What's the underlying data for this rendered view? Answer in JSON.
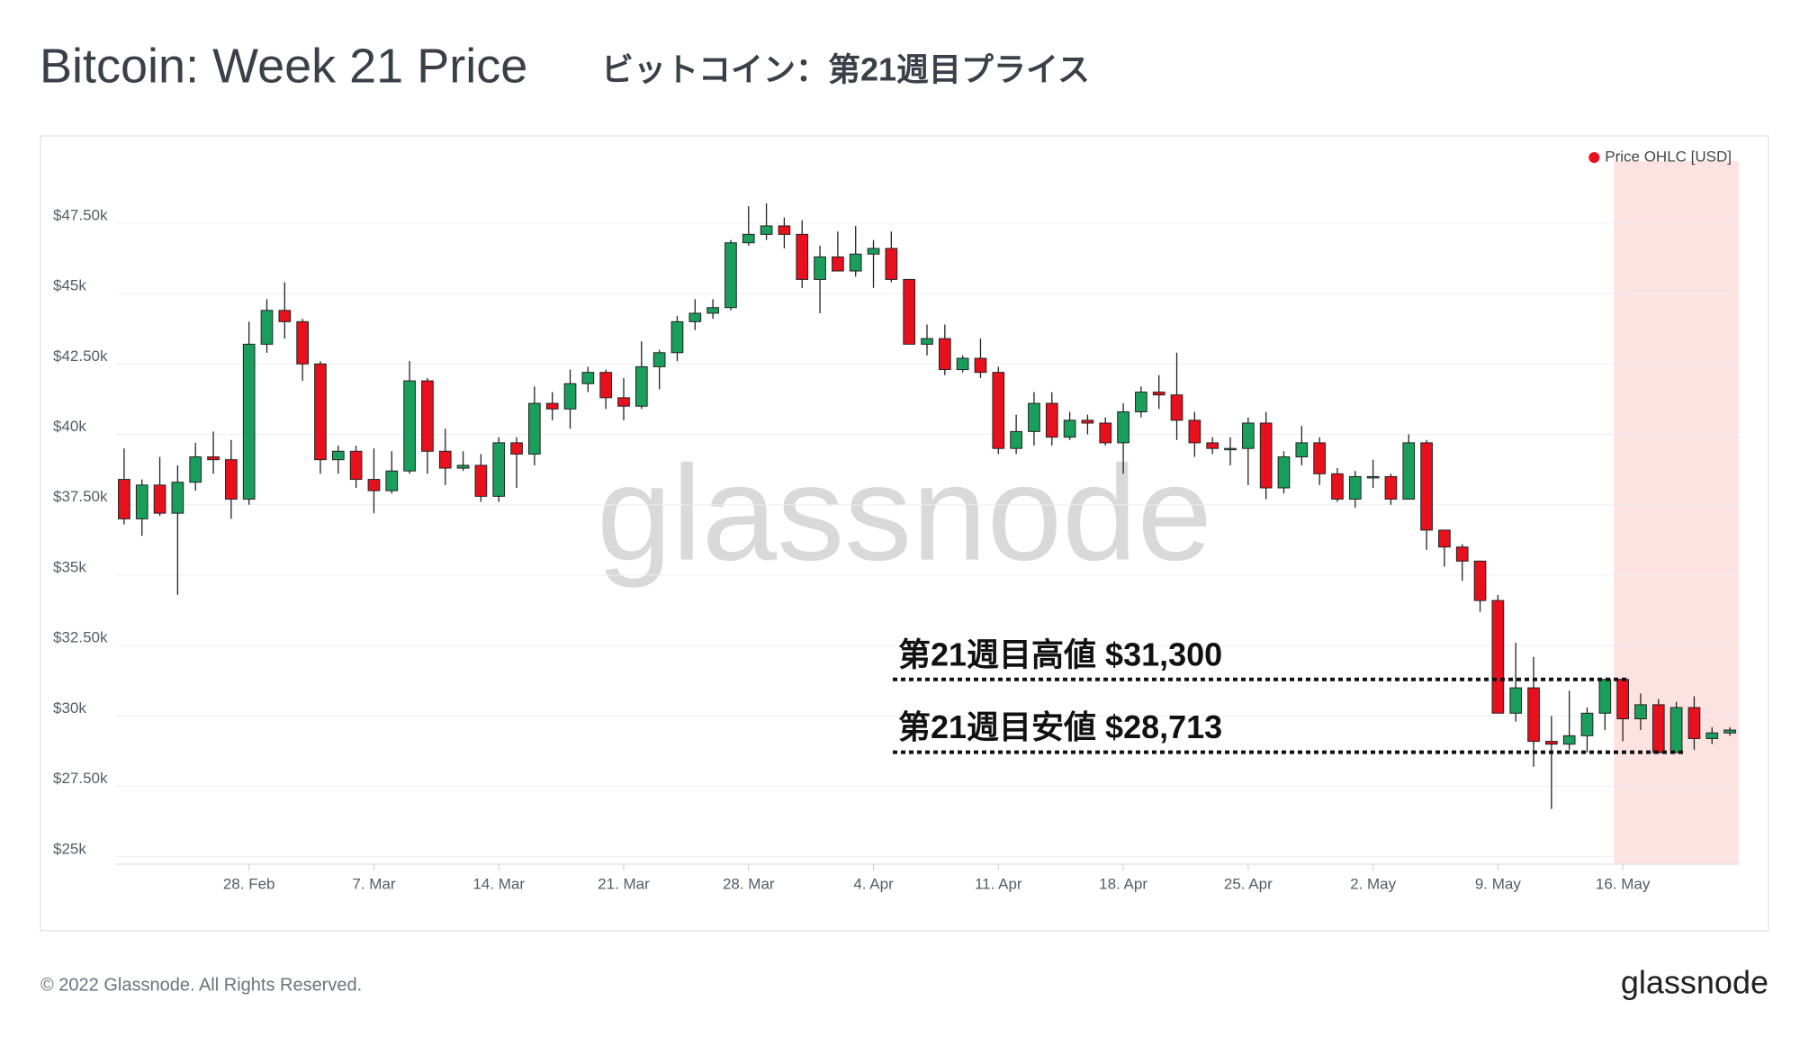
{
  "header": {
    "title": "Bitcoin: Week 21 Price",
    "subtitle": "ビットコイン：第21週目プライス"
  },
  "footer": {
    "copyright": "© 2022 Glassnode. All Rights Reserved.",
    "logo": "glassnode"
  },
  "watermark": "glassnode",
  "chart_data": {
    "type": "candlestick",
    "categories": [
      "21. Feb",
      "22. Feb",
      "23. Feb",
      "24. Feb",
      "25. Feb",
      "26. Feb",
      "27. Feb",
      "28. Feb",
      "1. Mar",
      "2. Mar",
      "3. Mar",
      "4. Mar",
      "5. Mar",
      "6. Mar",
      "7. Mar",
      "8. Mar",
      "9. Mar",
      "10. Mar",
      "11. Mar",
      "12. Mar",
      "13. Mar",
      "14. Mar",
      "15. Mar",
      "16. Mar",
      "17. Mar",
      "18. Mar",
      "19. Mar",
      "20. Mar",
      "21. Mar",
      "22. Mar",
      "23. Mar",
      "24. Mar",
      "25. Mar",
      "26. Mar",
      "27. Mar",
      "28. Mar",
      "29. Mar",
      "30. Mar",
      "31. Mar",
      "1. Apr",
      "2. Apr",
      "3. Apr",
      "4. Apr",
      "5. Apr",
      "6. Apr",
      "7. Apr",
      "8. Apr",
      "9. Apr",
      "10. Apr",
      "11. Apr",
      "12. Apr",
      "13. Apr",
      "14. Apr",
      "15. Apr",
      "16. Apr",
      "17. Apr",
      "18. Apr",
      "19. Apr",
      "20. Apr",
      "21. Apr",
      "22. Apr",
      "23. Apr",
      "24. Apr",
      "25. Apr",
      "26. Apr",
      "27. Apr",
      "28. Apr",
      "29. Apr",
      "30. Apr",
      "1. May",
      "2. May",
      "3. May",
      "4. May",
      "5. May",
      "6. May",
      "7. May",
      "8. May",
      "9. May",
      "10. May",
      "11. May",
      "12. May",
      "13. May",
      "14. May",
      "15. May",
      "16. May",
      "17. May",
      "18. May",
      "19. May",
      "20. May",
      "21. May",
      "22. May"
    ],
    "series": [
      {
        "name": "Price OHLC [USD]",
        "color": "#e8101c",
        "up_color": "#1a9e5c",
        "down_color": "#e8101c",
        "open": [
          38400,
          37000,
          38200,
          37200,
          38300,
          39200,
          39100,
          37700,
          43200,
          44400,
          44000,
          42500,
          39100,
          39400,
          38400,
          38000,
          38700,
          41900,
          39400,
          38800,
          38900,
          37800,
          39700,
          39300,
          41100,
          40900,
          41800,
          42200,
          41300,
          41000,
          42400,
          42900,
          44000,
          44300,
          44500,
          46800,
          47100,
          47400,
          47100,
          45500,
          46300,
          45800,
          46400,
          46600,
          45500,
          43200,
          43400,
          42300,
          42700,
          42200,
          39500,
          40100,
          41100,
          39900,
          40500,
          40400,
          39700,
          40800,
          41500,
          41400,
          40500,
          39700,
          39500,
          39500,
          40400,
          38100,
          39200,
          39700,
          38600,
          37700,
          38500,
          38500,
          37700,
          39700,
          36600,
          36000,
          35500,
          34100,
          30100,
          31000,
          29100,
          29000,
          29300,
          30100,
          31300,
          29900,
          30400,
          28700,
          30300,
          29200,
          29400
        ],
        "high": [
          39500,
          38400,
          39200,
          38900,
          39700,
          40100,
          39800,
          44000,
          44800,
          45400,
          44100,
          42600,
          39600,
          39600,
          39500,
          39400,
          42600,
          42000,
          40200,
          39400,
          39300,
          39900,
          39900,
          41700,
          41500,
          42300,
          42400,
          42300,
          42000,
          43300,
          43000,
          44200,
          44800,
          44800,
          46900,
          48100,
          48200,
          47700,
          47600,
          46700,
          47200,
          47400,
          46900,
          47200,
          45500,
          43900,
          43900,
          42800,
          43400,
          42400,
          40700,
          41500,
          41500,
          40800,
          40700,
          40600,
          41100,
          41700,
          42100,
          42900,
          40800,
          39900,
          39900,
          40600,
          40800,
          39400,
          40300,
          39900,
          38800,
          38700,
          39100,
          38600,
          40000,
          39800,
          36600,
          36100,
          35500,
          34300,
          32600,
          32100,
          30000,
          30900,
          30300,
          31300,
          31300,
          30800,
          30600,
          30500,
          30700,
          29600,
          29600
        ],
        "low": [
          36800,
          36400,
          37100,
          34300,
          38000,
          38600,
          37000,
          37500,
          42900,
          43400,
          41900,
          38600,
          38600,
          38100,
          37200,
          37900,
          38600,
          38600,
          38200,
          38700,
          37600,
          37600,
          38100,
          38900,
          40500,
          40200,
          41500,
          40900,
          40500,
          40900,
          41600,
          42600,
          43700,
          44100,
          44400,
          46700,
          46900,
          46600,
          45200,
          44300,
          45800,
          45600,
          45200,
          45400,
          43200,
          42800,
          42100,
          42200,
          42000,
          39300,
          39300,
          39600,
          39600,
          39800,
          40000,
          39600,
          38600,
          40600,
          40900,
          39800,
          39200,
          39300,
          38900,
          38200,
          37700,
          37900,
          38900,
          38200,
          37600,
          37400,
          38100,
          37500,
          37700,
          35900,
          35300,
          34800,
          33700,
          30100,
          29800,
          28200,
          26700,
          28800,
          28700,
          29500,
          29100,
          29500,
          28700,
          28700,
          28800,
          29000,
          29300
        ],
        "close": [
          37000,
          38200,
          37200,
          38300,
          39200,
          39100,
          37700,
          43200,
          44400,
          44000,
          42500,
          39100,
          39400,
          38400,
          38000,
          38700,
          41900,
          39400,
          38800,
          38900,
          37800,
          39700,
          39300,
          41100,
          40900,
          41800,
          42200,
          41300,
          41000,
          42400,
          42900,
          44000,
          44300,
          44500,
          46800,
          47100,
          47400,
          47100,
          45500,
          46300,
          45800,
          46400,
          46600,
          45500,
          43200,
          43400,
          42300,
          42700,
          42200,
          39500,
          40100,
          41100,
          39900,
          40500,
          40400,
          39700,
          40800,
          41500,
          41400,
          40500,
          39700,
          39500,
          39500,
          40400,
          38100,
          39200,
          39700,
          38600,
          37700,
          38500,
          38500,
          37700,
          39700,
          36600,
          36000,
          35500,
          34100,
          30100,
          31000,
          29100,
          29000,
          29300,
          30100,
          31300,
          29900,
          30400,
          28700,
          30300,
          29200,
          29400,
          29500
        ]
      }
    ],
    "ylim": [
      24740,
      49700
    ],
    "yticks": [
      {
        "value": 25000,
        "label": "$25k"
      },
      {
        "value": 27500,
        "label": "$27.50k"
      },
      {
        "value": 30000,
        "label": "$30k"
      },
      {
        "value": 32500,
        "label": "$32.50k"
      },
      {
        "value": 35000,
        "label": "$35k"
      },
      {
        "value": 37500,
        "label": "$37.50k"
      },
      {
        "value": 40000,
        "label": "$40k"
      },
      {
        "value": 42500,
        "label": "$42.50k"
      },
      {
        "value": 45000,
        "label": "$45k"
      },
      {
        "value": 47500,
        "label": "$47.50k"
      }
    ],
    "xticks": [
      "28. Feb",
      "7. Mar",
      "14. Mar",
      "21. Mar",
      "28. Mar",
      "4. Apr",
      "11. Apr",
      "18. Apr",
      "25. Apr",
      "2. May",
      "9. May",
      "16. May"
    ],
    "grid": true,
    "legend": "top-right",
    "highlight": {
      "from": "16. May",
      "to": "22. May",
      "color": "#fde2e2"
    },
    "annotations": [
      {
        "text": "第21週目高値 $31,300",
        "value": 31300
      },
      {
        "text": "第21週目安値 $28,713",
        "value": 28713
      }
    ]
  }
}
